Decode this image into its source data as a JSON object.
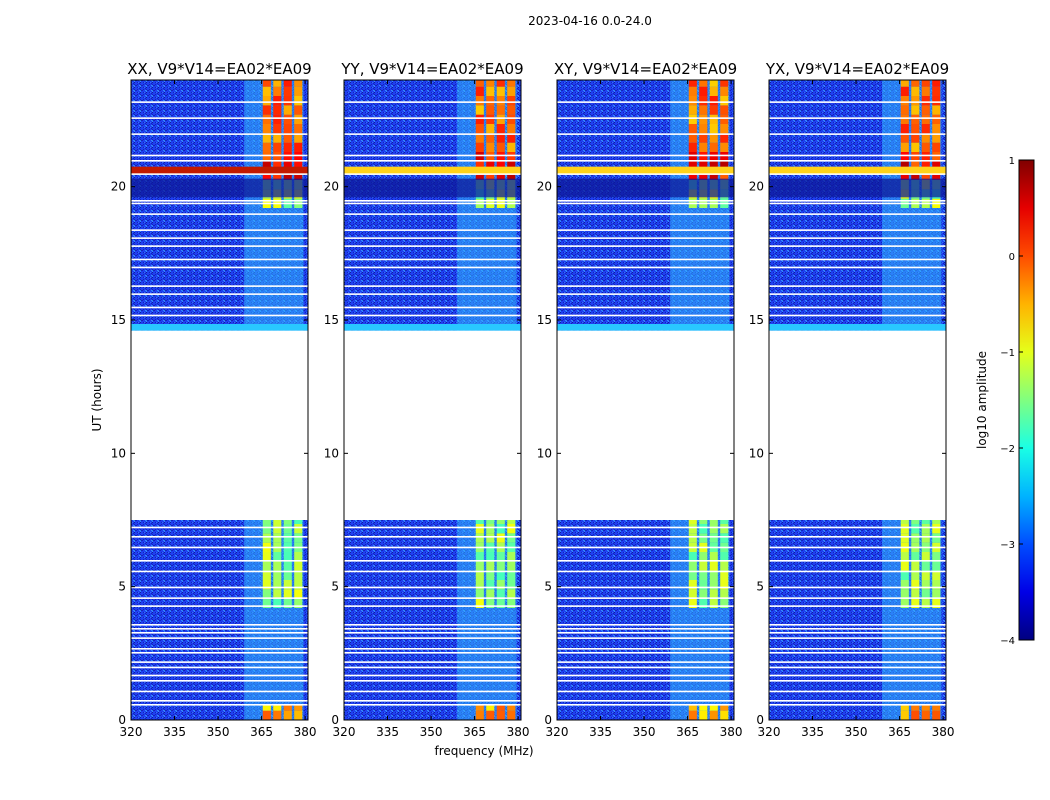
{
  "chart_data": {
    "type": "heatmap",
    "suptitle": "2023-04-16 0.0-24.0",
    "xlabel": "frequency (MHz)",
    "ylabel": "UT (hours)",
    "xlim": [
      320,
      381
    ],
    "ylim": [
      0,
      24
    ],
    "xticks": [
      "320",
      "335",
      "350",
      "365",
      "380"
    ],
    "yticks": [
      "0",
      "5",
      "10",
      "15",
      "20"
    ],
    "panels": [
      {
        "title": "XX, V9*V14=EA02*EA09",
        "rfi_start_mhz": 359,
        "band_start_mhz": 365,
        "band_end_mhz": 376
      },
      {
        "title": "YY, V9*V14=EA02*EA09",
        "rfi_start_mhz": 359,
        "band_start_mhz": 365,
        "band_end_mhz": 376
      },
      {
        "title": "XY, V9*V14=EA02*EA09",
        "rfi_start_mhz": 359,
        "band_start_mhz": 365,
        "band_end_mhz": 376
      },
      {
        "title": "YX, V9*V14=EA02*EA09",
        "rfi_start_mhz": 359,
        "band_start_mhz": 365,
        "band_end_mhz": 376
      }
    ],
    "gap_hours": [
      7.5,
      14.6
    ],
    "colorbar": {
      "label": "log10 amplitude",
      "range": [
        -4,
        1
      ],
      "ticks": [
        "1",
        "0",
        "−1",
        "−2",
        "−3",
        "−4"
      ],
      "colormap": "jet"
    }
  }
}
